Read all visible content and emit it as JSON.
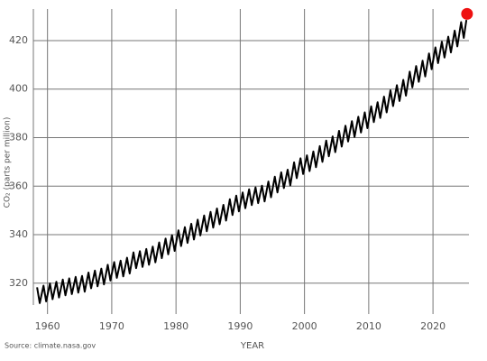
{
  "chart_data": {
    "type": "line",
    "x_label": "YEAR",
    "y_label": "CO₂ (parts per million)",
    "source": "Source: climate.nasa.gov",
    "color": "#000000",
    "grid": true,
    "xlim": [
      1957.8,
      2025.6
    ],
    "ylim": [
      311,
      433
    ],
    "xticks": [
      1960,
      1970,
      1980,
      1990,
      2000,
      2010,
      2020
    ],
    "yticks": [
      320,
      340,
      360,
      380,
      400,
      420
    ],
    "x": [
      1958.38,
      1958.79,
      1959.38,
      1959.79,
      1960.38,
      1960.79,
      1961.38,
      1961.79,
      1962.38,
      1962.79,
      1963.38,
      1963.79,
      1964.38,
      1964.79,
      1965.38,
      1965.79,
      1966.38,
      1966.79,
      1967.38,
      1967.79,
      1968.38,
      1968.79,
      1969.38,
      1969.79,
      1970.38,
      1970.79,
      1971.38,
      1971.79,
      1972.38,
      1972.79,
      1973.38,
      1973.79,
      1974.38,
      1974.79,
      1975.38,
      1975.79,
      1976.38,
      1976.79,
      1977.38,
      1977.79,
      1978.38,
      1978.79,
      1979.38,
      1979.79,
      1980.38,
      1980.79,
      1981.38,
      1981.79,
      1982.38,
      1982.79,
      1983.38,
      1983.79,
      1984.38,
      1984.79,
      1985.38,
      1985.79,
      1986.38,
      1986.79,
      1987.38,
      1987.79,
      1988.38,
      1988.79,
      1989.38,
      1989.79,
      1990.38,
      1990.79,
      1991.38,
      1991.79,
      1992.38,
      1992.79,
      1993.38,
      1993.79,
      1994.38,
      1994.79,
      1995.38,
      1995.79,
      1996.38,
      1996.79,
      1997.38,
      1997.79,
      1998.38,
      1998.79,
      1999.38,
      1999.79,
      2000.38,
      2000.79,
      2001.38,
      2001.79,
      2002.38,
      2002.79,
      2003.38,
      2003.79,
      2004.38,
      2004.79,
      2005.38,
      2005.79,
      2006.38,
      2006.79,
      2007.38,
      2007.79,
      2008.38,
      2008.79,
      2009.38,
      2009.79,
      2010.38,
      2010.79,
      2011.38,
      2011.79,
      2012.38,
      2012.79,
      2013.38,
      2013.79,
      2014.38,
      2014.79,
      2015.38,
      2015.79,
      2016.38,
      2016.79,
      2017.38,
      2017.79,
      2018.38,
      2018.79,
      2019.38,
      2019.79,
      2020.38,
      2020.79,
      2021.38,
      2021.79,
      2022.38,
      2022.79,
      2023.38,
      2023.79,
      2024.38,
      2024.79,
      2025.2
    ],
    "values": [
      318.3,
      311.8,
      319.0,
      312.5,
      319.9,
      313.4,
      320.6,
      314.1,
      321.5,
      315.0,
      322.0,
      315.5,
      322.6,
      316.1,
      323.0,
      316.5,
      324.4,
      317.9,
      325.2,
      318.7,
      326.0,
      319.5,
      327.6,
      321.1,
      328.7,
      322.2,
      329.3,
      322.8,
      330.5,
      324.0,
      332.7,
      326.2,
      333.2,
      326.7,
      334.1,
      327.6,
      335.1,
      328.6,
      336.8,
      330.3,
      338.4,
      331.9,
      339.8,
      333.3,
      341.8,
      335.3,
      343.1,
      336.6,
      344.5,
      338.0,
      346.2,
      339.7,
      347.9,
      341.4,
      349.4,
      342.9,
      350.8,
      344.3,
      352.3,
      345.8,
      354.6,
      348.1,
      356.1,
      349.6,
      357.4,
      350.9,
      358.7,
      352.2,
      359.5,
      353.0,
      360.2,
      353.7,
      361.9,
      355.4,
      363.9,
      357.4,
      365.7,
      359.2,
      366.8,
      360.3,
      369.8,
      363.3,
      371.5,
      365.0,
      372.7,
      366.2,
      374.3,
      367.8,
      376.5,
      370.0,
      378.8,
      372.3,
      380.5,
      374.0,
      382.8,
      376.3,
      384.9,
      378.4,
      386.8,
      380.3,
      388.6,
      382.1,
      390.4,
      383.9,
      392.9,
      386.4,
      394.6,
      388.1,
      396.9,
      390.4,
      399.5,
      393.0,
      401.6,
      395.1,
      403.8,
      397.3,
      407.2,
      400.7,
      409.5,
      403.0,
      411.7,
      405.2,
      414.7,
      408.2,
      417.2,
      410.7,
      419.5,
      413.0,
      421.6,
      415.1,
      424.1,
      417.6,
      427.6,
      421.1,
      428.5
    ],
    "marker": {
      "x": 2025.3,
      "value": 431,
      "color": "#ee1111"
    }
  }
}
